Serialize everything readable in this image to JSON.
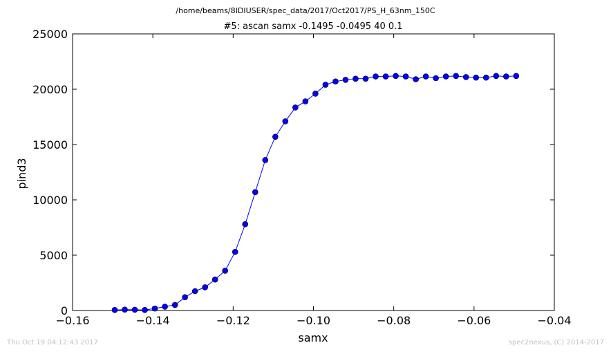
{
  "chart_data": {
    "type": "line",
    "suptitle": "/home/beams/8IDIUSER/spec_data/2017/Oct2017/PS_H_63nm_150C",
    "title": "#5: ascan  samx -0.1495 -0.0495  40 0.1",
    "xlabel": "samx",
    "ylabel": "pind3",
    "xlim": [
      -0.16,
      -0.04
    ],
    "ylim": [
      0,
      25000
    ],
    "xticks": [
      "−0.16",
      "−0.14",
      "−0.12",
      "−0.10",
      "−0.08",
      "−0.06",
      "−0.04"
    ],
    "xtick_values": [
      -0.16,
      -0.14,
      -0.12,
      -0.1,
      -0.08,
      -0.06,
      -0.04
    ],
    "yticks": [
      "0",
      "5000",
      "10000",
      "15000",
      "20000",
      "25000"
    ],
    "ytick_values": [
      0,
      5000,
      10000,
      15000,
      20000,
      25000
    ],
    "grid": false,
    "series": [
      {
        "color": "#0000ff",
        "marker": "circle",
        "x": [
          -0.1495,
          -0.147,
          -0.1445,
          -0.142,
          -0.1395,
          -0.137,
          -0.1345,
          -0.132,
          -0.1295,
          -0.127,
          -0.1245,
          -0.122,
          -0.1195,
          -0.117,
          -0.1145,
          -0.112,
          -0.1095,
          -0.107,
          -0.1045,
          -0.102,
          -0.0995,
          -0.097,
          -0.0945,
          -0.092,
          -0.0895,
          -0.087,
          -0.0845,
          -0.082,
          -0.0795,
          -0.077,
          -0.0745,
          -0.072,
          -0.0695,
          -0.067,
          -0.0645,
          -0.062,
          -0.0595,
          -0.057,
          -0.0545,
          -0.052,
          -0.0495
        ],
        "y": [
          50,
          80,
          70,
          50,
          180,
          350,
          500,
          1200,
          1750,
          2100,
          2800,
          3600,
          5300,
          7800,
          10700,
          13600,
          15700,
          17100,
          18350,
          18900,
          19600,
          20400,
          20700,
          20850,
          20950,
          20950,
          21150,
          21150,
          21200,
          21150,
          20900,
          21150,
          21000,
          21150,
          21200,
          21100,
          21050,
          21050,
          21200,
          21150,
          21200
        ]
      }
    ]
  },
  "footer": {
    "timestamp": "Thu Oct 19 04:12:43 2017",
    "credit": "spec2nexus, (C) 2014-2017"
  }
}
